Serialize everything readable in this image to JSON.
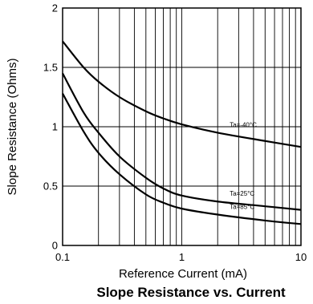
{
  "chart_data": {
    "type": "line",
    "title": "Slope Resistance vs. Current",
    "xlabel": "Reference Current (mA)",
    "ylabel": "Slope Resistance (Ohms)",
    "x_scale": "log",
    "xlim": [
      0.1,
      10
    ],
    "ylim": [
      0,
      2
    ],
    "x_ticks": [
      "0.1",
      "1",
      "10"
    ],
    "y_ticks": [
      "0",
      "0.5",
      "1",
      "1.5",
      "2"
    ],
    "grid": true,
    "series": [
      {
        "name": "Ta=-40°C",
        "x": [
          0.1,
          0.15,
          0.2,
          0.3,
          0.5,
          0.7,
          1,
          2,
          5,
          10
        ],
        "y": [
          1.72,
          1.5,
          1.38,
          1.25,
          1.13,
          1.07,
          1.02,
          0.95,
          0.88,
          0.83
        ]
      },
      {
        "name": "Ta=25°C",
        "x": [
          0.1,
          0.15,
          0.2,
          0.3,
          0.5,
          0.7,
          1,
          2,
          5,
          10
        ],
        "y": [
          1.45,
          1.12,
          0.95,
          0.75,
          0.57,
          0.48,
          0.42,
          0.37,
          0.33,
          0.3
        ]
      },
      {
        "name": "Ta=85°C",
        "x": [
          0.1,
          0.15,
          0.2,
          0.3,
          0.5,
          0.7,
          1,
          2,
          5,
          10
        ],
        "y": [
          1.28,
          0.96,
          0.78,
          0.6,
          0.43,
          0.36,
          0.31,
          0.26,
          0.21,
          0.18
        ]
      }
    ]
  }
}
